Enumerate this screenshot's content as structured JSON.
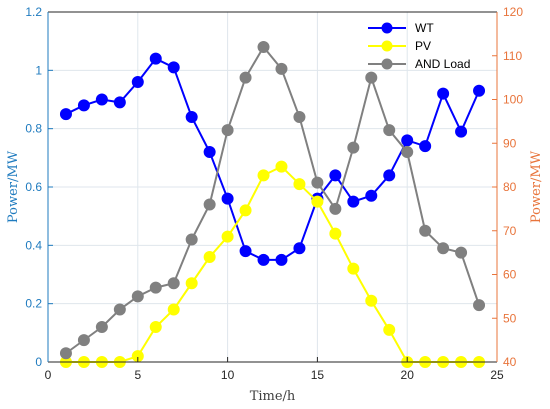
{
  "chart_data": {
    "type": "line",
    "xlabel": "Time/h",
    "ylabel_left": "Power/MW",
    "ylabel_right": "Power/MW",
    "xlim": [
      0,
      25
    ],
    "ylim_left": [
      0,
      1.2
    ],
    "ylim_right": [
      40,
      120
    ],
    "grid": true,
    "legend_position": "top-right",
    "x_ticks": [
      "0",
      "5",
      "10",
      "15",
      "20",
      "25"
    ],
    "y_left_ticks": [
      "0",
      "0.2",
      "0.4",
      "0.6",
      "0.8",
      "1",
      "1.2"
    ],
    "y_right_ticks": [
      "40",
      "50",
      "60",
      "70",
      "80",
      "90",
      "100",
      "110",
      "120"
    ],
    "x": [
      1,
      2,
      3,
      4,
      5,
      6,
      7,
      8,
      9,
      10,
      11,
      12,
      13,
      14,
      15,
      16,
      17,
      18,
      19,
      20,
      21,
      22,
      23,
      24
    ],
    "series": [
      {
        "name": "WT",
        "axis": "left",
        "color": "#0000ff",
        "values": [
          0.85,
          0.88,
          0.9,
          0.89,
          0.96,
          1.04,
          1.01,
          0.84,
          0.72,
          0.56,
          0.38,
          0.35,
          0.35,
          0.39,
          0.56,
          0.64,
          0.55,
          0.57,
          0.64,
          0.76,
          0.74,
          0.92,
          0.79,
          0.93
        ]
      },
      {
        "name": "PV",
        "axis": "left",
        "color": "#ffff00",
        "values": [
          0,
          0,
          0,
          0,
          0.02,
          0.12,
          0.18,
          0.27,
          0.36,
          0.43,
          0.52,
          0.64,
          0.67,
          0.61,
          0.55,
          0.44,
          0.32,
          0.21,
          0.11,
          0,
          0,
          0,
          0,
          0
        ]
      },
      {
        "name": "AND Load",
        "axis": "right",
        "color": "#808080",
        "values": [
          42,
          45,
          48,
          52,
          55,
          57,
          58,
          68,
          76,
          93,
          105,
          112,
          107,
          96,
          81,
          75,
          89,
          105,
          93,
          88,
          70,
          66,
          65,
          53
        ]
      }
    ]
  },
  "colors": {
    "left_axis": "#1f7bbf",
    "right_axis": "#e8743b",
    "grid": "#dfe6ec"
  }
}
